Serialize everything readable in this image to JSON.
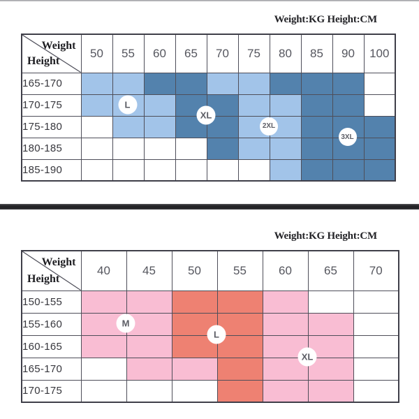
{
  "chart_data": [
    {
      "type": "table",
      "title": "Weight:KG Height:CM",
      "corner": {
        "column_axis": "Weight",
        "row_axis": "Height"
      },
      "columns": [
        "50",
        "55",
        "60",
        "65",
        "70",
        "75",
        "80",
        "85",
        "90",
        "100"
      ],
      "rows": [
        "165-170",
        "170-175",
        "175-180",
        "180-185",
        "185-190"
      ],
      "palette": {
        "light": "#a2c4e9",
        "dark": "#5382ad"
      },
      "cells": [
        [
          "light",
          "light",
          "dark",
          "dark",
          "light",
          "light",
          "dark",
          "dark",
          "dark",
          ""
        ],
        [
          "light",
          "light",
          "light",
          "dark",
          "dark",
          "light",
          "light",
          "dark",
          "dark",
          ""
        ],
        [
          "",
          "light",
          "light",
          "dark",
          "dark",
          "light",
          "light",
          "dark",
          "dark",
          "dark"
        ],
        [
          "",
          "",
          "",
          "",
          "dark",
          "light",
          "light",
          "dark",
          "dark",
          "dark"
        ],
        [
          "",
          "",
          "",
          "",
          "",
          "",
          "light",
          "dark",
          "dark",
          "dark"
        ]
      ],
      "badges": [
        {
          "label": "L",
          "col": 1.5,
          "row": 1.5
        },
        {
          "label": "XL",
          "col": 4,
          "row": 2
        },
        {
          "label": "2XL",
          "col": 6,
          "row": 2.5
        },
        {
          "label": "3XL",
          "col": 8.5,
          "row": 3
        }
      ]
    },
    {
      "type": "table",
      "title": "Weight:KG Height:CM",
      "corner": {
        "column_axis": "Weight",
        "row_axis": "Height"
      },
      "columns": [
        "40",
        "45",
        "50",
        "55",
        "60",
        "65",
        "70"
      ],
      "rows": [
        "150-155",
        "155-160",
        "160-165",
        "165-170",
        "170-175"
      ],
      "palette": {
        "pink": "#f9bdd3",
        "red": "#ee8172"
      },
      "cells": [
        [
          "pink",
          "pink",
          "red",
          "red",
          "pink",
          "",
          ""
        ],
        [
          "pink",
          "pink",
          "red",
          "red",
          "pink",
          "pink",
          ""
        ],
        [
          "pink",
          "pink",
          "red",
          "red",
          "pink",
          "pink",
          ""
        ],
        [
          "",
          "pink",
          "pink",
          "red",
          "pink",
          "pink",
          ""
        ],
        [
          "",
          "",
          "",
          "red",
          "pink",
          "pink",
          ""
        ]
      ],
      "badges": [
        {
          "label": "M",
          "col": 1,
          "row": 1.5
        },
        {
          "label": "L",
          "col": 3,
          "row": 2
        },
        {
          "label": "XL",
          "col": 5,
          "row": 3
        }
      ]
    }
  ]
}
